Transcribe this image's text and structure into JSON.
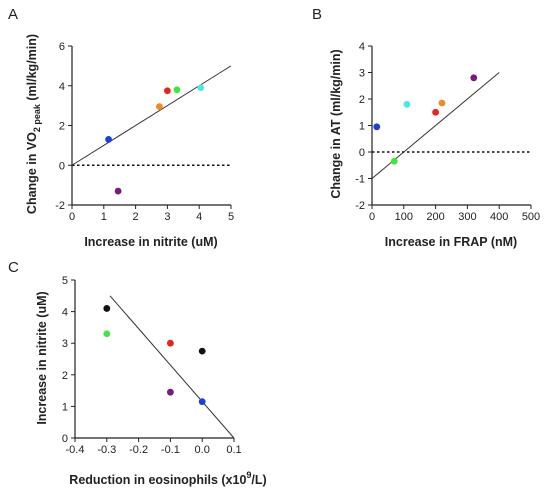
{
  "chart_data": [
    {
      "panel": "A",
      "type": "scatter",
      "xlabel": "Increase in nitrite (uM)",
      "ylabel_main": "Change in VO",
      "ylabel_sub": "2",
      "ylabel_subsub": " peak",
      "ylabel_end": " (ml/kg/min)",
      "xlim": [
        0,
        5
      ],
      "ylim": [
        -2,
        6
      ],
      "xticks": [
        0,
        1,
        2,
        3,
        4,
        5
      ],
      "yticks": [
        -2,
        0,
        2,
        4,
        6
      ],
      "zero_line": true,
      "fit_line": [
        [
          0,
          0
        ],
        [
          5,
          5
        ]
      ],
      "points": [
        {
          "x": 1.15,
          "y": 1.3,
          "color": "#1f3fd6"
        },
        {
          "x": 1.45,
          "y": -1.3,
          "color": "#7a1a7a"
        },
        {
          "x": 2.75,
          "y": 2.95,
          "color": "#f08a24"
        },
        {
          "x": 3.0,
          "y": 3.75,
          "color": "#e8241c"
        },
        {
          "x": 3.3,
          "y": 3.8,
          "color": "#3de83d"
        },
        {
          "x": 4.05,
          "y": 3.9,
          "color": "#4fe6ea"
        }
      ]
    },
    {
      "panel": "B",
      "type": "scatter",
      "xlabel": "Increase in FRAP (nM)",
      "ylabel": "Change in AT (ml/kg/min)",
      "xlim": [
        0,
        500
      ],
      "ylim": [
        -2,
        4
      ],
      "xticks": [
        0,
        100,
        200,
        300,
        400,
        500
      ],
      "yticks": [
        -2,
        -1,
        0,
        1,
        2,
        3,
        4
      ],
      "zero_line": true,
      "fit_line": [
        [
          0,
          -1.0
        ],
        [
          400,
          3.0
        ]
      ],
      "points": [
        {
          "x": 15,
          "y": 0.95,
          "color": "#1f3fd6"
        },
        {
          "x": 70,
          "y": -0.35,
          "color": "#3de83d"
        },
        {
          "x": 110,
          "y": 1.8,
          "color": "#4fe6ea"
        },
        {
          "x": 200,
          "y": 1.5,
          "color": "#e8241c"
        },
        {
          "x": 220,
          "y": 1.85,
          "color": "#f08a24"
        },
        {
          "x": 320,
          "y": 2.8,
          "color": "#7a1a7a"
        }
      ]
    },
    {
      "panel": "C",
      "type": "scatter",
      "xlabel_main": "Reduction in eosinophils (x10",
      "xlabel_sup": "9",
      "xlabel_end": "/L)",
      "ylabel": "Increase in nitrite (uM)",
      "xlim": [
        -0.4,
        0.1
      ],
      "ylim": [
        0,
        5
      ],
      "xticks": [
        -0.4,
        -0.3,
        -0.2,
        -0.1,
        0.0,
        0.1
      ],
      "xtick_labels": [
        "-0.4",
        "-0.3",
        "-0.2",
        "-0.1",
        "0.0",
        "0.1"
      ],
      "yticks": [
        0,
        1,
        2,
        3,
        4,
        5
      ],
      "zero_line": false,
      "fit_line": [
        [
          -0.29,
          4.5
        ],
        [
          0.1,
          0.0
        ]
      ],
      "points": [
        {
          "x": -0.3,
          "y": 4.1,
          "color": "#111111"
        },
        {
          "x": -0.3,
          "y": 3.3,
          "color": "#3de83d"
        },
        {
          "x": -0.1,
          "y": 3.0,
          "color": "#e8241c"
        },
        {
          "x": -0.1,
          "y": 1.45,
          "color": "#7a1a7a"
        },
        {
          "x": 0.0,
          "y": 2.75,
          "color": "#111111"
        },
        {
          "x": 0.0,
          "y": 1.15,
          "color": "#1f3fd6"
        }
      ]
    }
  ]
}
